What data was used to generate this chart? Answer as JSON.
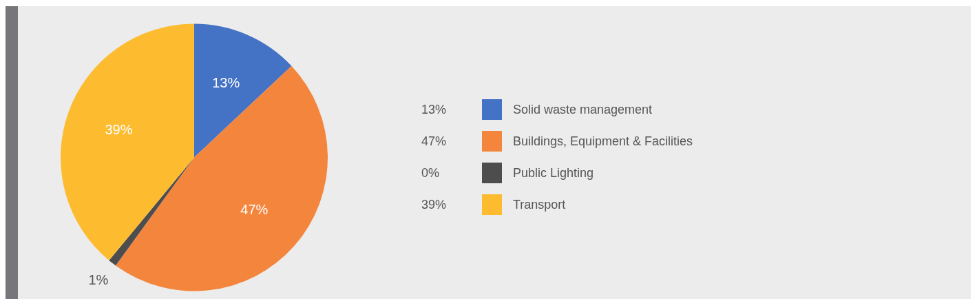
{
  "chart_data": {
    "type": "pie",
    "categories": [
      "Solid waste management",
      "Buildings, Equipment & Facilities",
      "Public Lighting",
      "Transport"
    ],
    "values": [
      13,
      47,
      1,
      39
    ],
    "colors": [
      "#4472c4",
      "#f4853d",
      "#4d4d4d",
      "#fdbc2f"
    ],
    "value_labels": [
      "13%",
      "47%",
      "1%",
      "39%"
    ],
    "legend": "right",
    "annotations": [
      "13%",
      "47%",
      "0%",
      "39%"
    ]
  }
}
